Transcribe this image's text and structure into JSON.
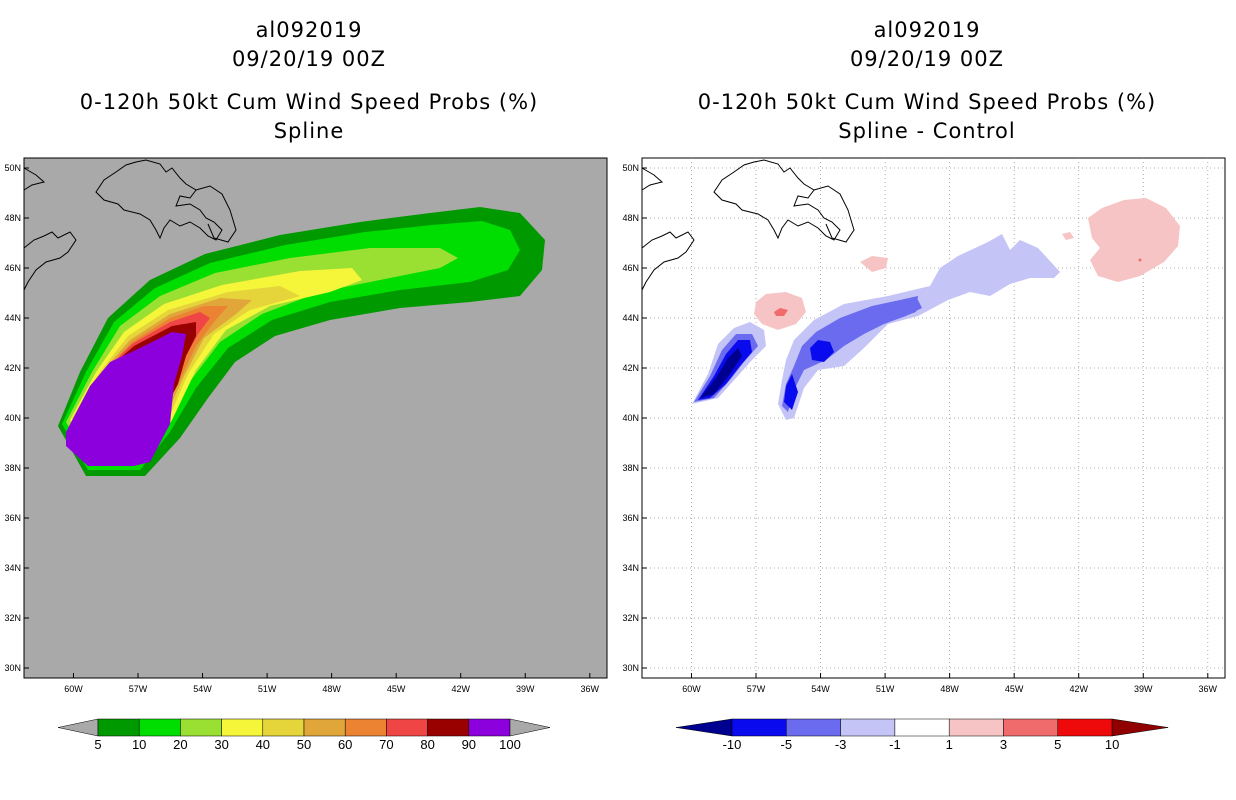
{
  "left_panel": {
    "title_id": "al092019",
    "title_time": "09/20/19 00Z",
    "title_product": "0-120h 50kt Cum Wind Speed Probs (%)",
    "title_method": "Spline",
    "colorbar": {
      "labels": [
        "5",
        "10",
        "20",
        "30",
        "40",
        "50",
        "60",
        "70",
        "80",
        "90",
        "100"
      ],
      "colors": [
        "#009900",
        "#00dd00",
        "#99e033",
        "#f5f53a",
        "#e5d53a",
        "#e0a63a",
        "#ec8333",
        "#f04545",
        "#990000",
        "#8b00dd"
      ],
      "end_color": "#a9a9a9"
    },
    "background_color": "#a9a9a9"
  },
  "right_panel": {
    "title_id": "al092019",
    "title_time": "09/20/19 00Z",
    "title_product": "0-120h 50kt Cum Wind Speed Probs (%)",
    "title_method": "Spline - Control",
    "colorbar": {
      "labels": [
        "-10",
        "-5",
        "-3",
        "-1",
        "1",
        "3",
        "5",
        "10"
      ],
      "colors": [
        "#000090",
        "#0a0aee",
        "#6b6bf0",
        "#c4c4f6",
        "#ffffff",
        "#f6c4c4",
        "#f06b6b",
        "#ee0a0a",
        "#900000"
      ]
    },
    "background_color": "#ffffff"
  },
  "axes": {
    "lat_labels": [
      "50N",
      "48N",
      "46N",
      "44N",
      "42N",
      "40N",
      "38N",
      "36N",
      "34N",
      "32N",
      "30N"
    ],
    "lon_labels": [
      "60W",
      "57W",
      "54W",
      "51W",
      "48W",
      "45W",
      "42W",
      "39W",
      "36W"
    ]
  }
}
